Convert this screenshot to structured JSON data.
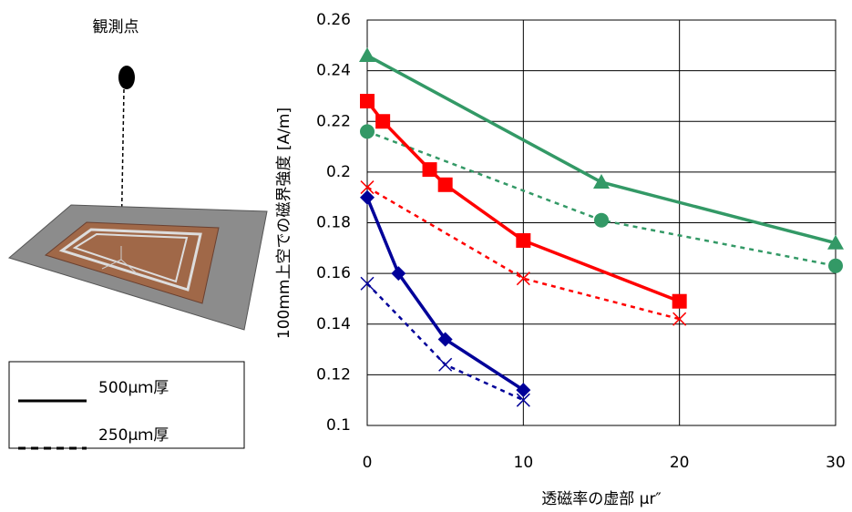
{
  "illustration": {
    "label": "観測点"
  },
  "chart_data": {
    "type": "scatter",
    "x_label": "透磁率の虚部 μr″",
    "y_label": "100mm上空での磁界強度 [A/m]",
    "xlim": [
      0,
      30
    ],
    "xticks": [
      0,
      10,
      20,
      30
    ],
    "ylim": [
      0.1,
      0.26
    ],
    "yticks": [
      0.1,
      0.12,
      0.14,
      0.16,
      0.18,
      0.2,
      0.22,
      0.24,
      0.26
    ],
    "grid": true,
    "legend_entries": [
      {
        "label": "500μｍ厚",
        "dash": false
      },
      {
        "label": "250μｍ厚",
        "dash": true
      }
    ],
    "series": [
      {
        "color": "#339966",
        "marker": "triangle",
        "dash": false,
        "x": [
          0,
          15,
          30
        ],
        "values": [
          0.246,
          0.196,
          0.172
        ]
      },
      {
        "color": "#339966",
        "marker": "circle",
        "dash": true,
        "x": [
          0,
          15,
          30
        ],
        "values": [
          0.216,
          0.181,
          0.163
        ]
      },
      {
        "color": "#ff0000",
        "marker": "square",
        "dash": false,
        "x": [
          0,
          1,
          4,
          5,
          10,
          20
        ],
        "values": [
          0.228,
          0.22,
          0.201,
          0.195,
          0.173,
          0.149
        ]
      },
      {
        "color": "#ff0000",
        "marker": "cross",
        "dash": true,
        "x": [
          0,
          10,
          20
        ],
        "values": [
          0.194,
          0.158,
          0.142
        ]
      },
      {
        "color": "#000099",
        "marker": "diamond",
        "dash": false,
        "x": [
          0,
          2,
          5,
          10
        ],
        "values": [
          0.19,
          0.16,
          0.134,
          0.114
        ]
      },
      {
        "color": "#000099",
        "marker": "cross",
        "dash": true,
        "x": [
          0,
          5,
          10
        ],
        "values": [
          0.156,
          0.124,
          0.11
        ]
      }
    ]
  }
}
